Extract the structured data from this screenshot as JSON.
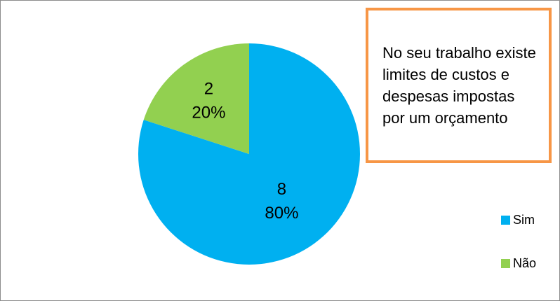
{
  "chart_data": {
    "type": "pie",
    "title": "No seu trabalho existe limites de custos e despesas impostas por um orçamento",
    "categories": [
      "Sim",
      "Não"
    ],
    "values": [
      8,
      2
    ],
    "percent_labels": [
      "80%",
      "20%"
    ],
    "colors": [
      "#00b0f0",
      "#92d050"
    ],
    "start_angle_deg": 0,
    "direction": "clockwise",
    "legend_position": "right",
    "title_box_border_color": "#f79646"
  }
}
